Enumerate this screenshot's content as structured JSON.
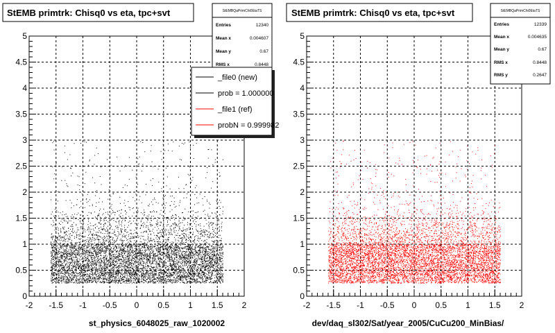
{
  "chart_data": [
    {
      "type": "scatter",
      "title": "StEMB primtrk: Chisq0 vs eta, tpc+svt",
      "xlabel": "st_physics_6048025_raw_1020002",
      "ylabel": "",
      "xlim": [
        -2,
        2
      ],
      "ylim": [
        0,
        5
      ],
      "xticks": [
        "-2",
        "-1.5",
        "-1",
        "-0.5",
        "0",
        "0.5",
        "1",
        "1.5",
        "2"
      ],
      "yticks": [
        "0",
        "0.5",
        "1",
        "1.5",
        "2",
        "2.5",
        "3",
        "3.5",
        "4",
        "4.5",
        "5"
      ],
      "grid": true,
      "marker_color": "#000000",
      "density": {
        "eta_range": [
          -1.6,
          1.6
        ],
        "dense_band": [
          0.25,
          1.0
        ],
        "tail_max": 3.0
      },
      "stats": {
        "name": "StEMBQaPrimChi0EtaTS",
        "entries": {
          "label": "Entries",
          "value": "12340"
        },
        "mean_x": {
          "label": "Mean x",
          "value": "0.004607"
        },
        "mean_y": {
          "label": "Mean y",
          "value": "0.67"
        },
        "rms_x": {
          "label": "RMS x",
          "value": "0.8448"
        }
      },
      "legend": {
        "position": "top-right",
        "entries": [
          {
            "label": "_file0 (new)",
            "color": "#000000"
          },
          {
            "label": "prob = 1.000000",
            "color": "#000000"
          },
          {
            "label": "_file1 (ref)",
            "color": "#ff0000"
          },
          {
            "label": "probN = 0.999982",
            "color": "#ff0000"
          }
        ]
      }
    },
    {
      "type": "scatter",
      "title": "StEMB primtrk: Chisq0 vs eta, tpc+svt",
      "xlabel": "dev/daq_sl302/Sat/year_2005/CuCu200_MinBias/",
      "ylabel": "",
      "xlim": [
        -2,
        2
      ],
      "ylim": [
        0,
        5
      ],
      "xticks": [
        "-2",
        "-1.5",
        "-1",
        "-0.5",
        "0",
        "0.5",
        "1",
        "1.5",
        "2"
      ],
      "yticks": [
        "0",
        "0.5",
        "1",
        "1.5",
        "2",
        "2.5",
        "3",
        "3.5",
        "4",
        "4.5",
        "5"
      ],
      "grid": true,
      "marker_color": "#ff0000",
      "density": {
        "eta_range": [
          -1.6,
          1.6
        ],
        "dense_band": [
          0.25,
          1.0
        ],
        "tail_max": 3.0
      },
      "stats": {
        "name": "StEMBQaPrimChi0EtaTS",
        "entries": {
          "label": "Entries",
          "value": "12339"
        },
        "mean_x": {
          "label": "Mean x",
          "value": "0.004635"
        },
        "mean_y": {
          "label": "Mean y",
          "value": "0.67"
        },
        "rms_x": {
          "label": "RMS x",
          "value": "0.8448"
        },
        "rms_y": {
          "label": "RMS y",
          "value": "0.2647"
        }
      }
    }
  ]
}
